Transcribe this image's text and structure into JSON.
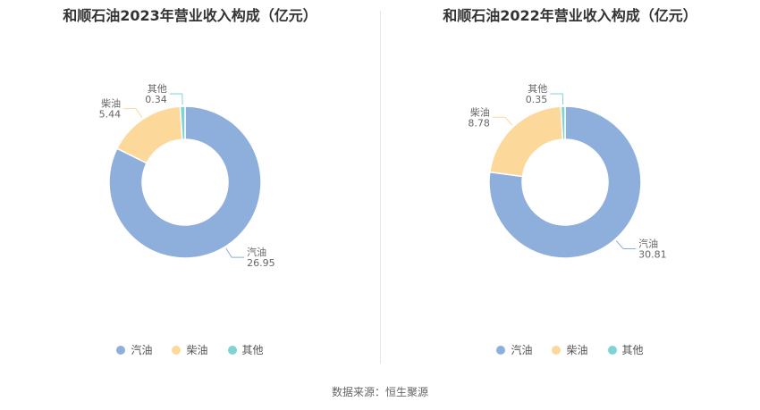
{
  "colors": {
    "汽油": "#8eaedb",
    "柴油": "#fdd89b",
    "其他": "#7fd3d5"
  },
  "source": "数据来源：恒生聚源",
  "chart_data": [
    {
      "type": "pie",
      "title": "和顺石油2023年营业收入构成（亿元）",
      "categories": [
        "汽油",
        "柴油",
        "其他"
      ],
      "values": [
        26.95,
        5.44,
        0.34
      ],
      "value_labels": [
        "26.95",
        "5.44",
        "0.34"
      ],
      "legend": "bottom",
      "donut": true
    },
    {
      "type": "pie",
      "title": "和顺石油2022年营业收入构成（亿元）",
      "categories": [
        "汽油",
        "柴油",
        "其他"
      ],
      "values": [
        30.81,
        8.78,
        0.35
      ],
      "value_labels": [
        "30.81",
        "8.78",
        "0.35"
      ],
      "legend": "bottom",
      "donut": true
    }
  ]
}
